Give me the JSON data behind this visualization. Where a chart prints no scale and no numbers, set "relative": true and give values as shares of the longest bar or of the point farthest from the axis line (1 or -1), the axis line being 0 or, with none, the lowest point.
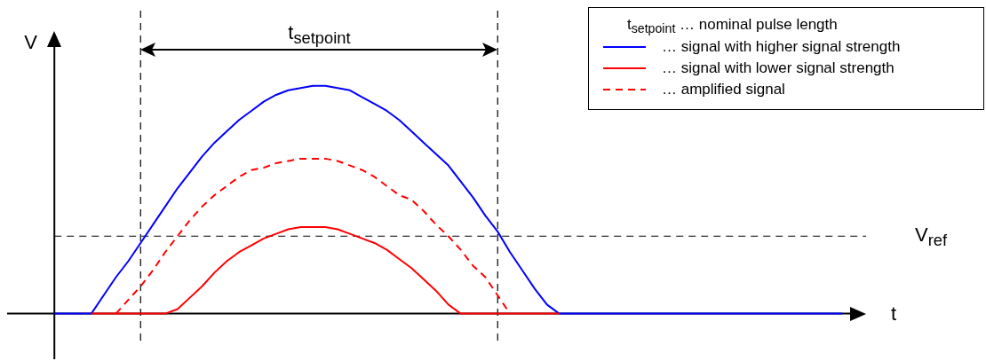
{
  "chart_data": {
    "type": "line",
    "relative": true,
    "xlabel": "t",
    "ylabel": "V",
    "legend": "top right",
    "marker": "none",
    "annotations": [
      "t$_{setpoint}$",
      "t$_{setpoint}$ … nominal pulse length"
    ],
    "categories": [
      null,
      null,
      null,
      null,
      null,
      null,
      null,
      null,
      null,
      null,
      null,
      null,
      null,
      null,
      null,
      null,
      null,
      null,
      null,
      null,
      null,
      null,
      null,
      null,
      null,
      null,
      null,
      null,
      null,
      null,
      null,
      null,
      null,
      null,
      null,
      null,
      null,
      null,
      null,
      null,
      null,
      null,
      null,
      null,
      null,
      null,
      null,
      null,
      null,
      null,
      null,
      null,
      null,
      null,
      null,
      null,
      null,
      null,
      null,
      null,
      null,
      null,
      null,
      null,
      null
    ],
    "series": [
      {
        "name": "… signal with higher signal strength",
        "color": "#0000ff",
        "line_style": "solid",
        "values": [
          0,
          0,
          0,
          0,
          0.08,
          0.16,
          0.23,
          0.31,
          0.39,
          0.47,
          0.55,
          0.62,
          0.69,
          0.75,
          0.8,
          0.85,
          0.89,
          0.93,
          0.96,
          0.98,
          0.99,
          1,
          1,
          0.99,
          0.98,
          0.95,
          0.92,
          0.89,
          0.85,
          0.8,
          0.75,
          0.7,
          0.65,
          0.58,
          0.51,
          0.43,
          0.36,
          0.27,
          0.19,
          0.11,
          0.04,
          0,
          0,
          0,
          0,
          0,
          0,
          0,
          0,
          0,
          0,
          0,
          0,
          0,
          0,
          0,
          0,
          0,
          0,
          0,
          0,
          0,
          0,
          0,
          0
        ]
      },
      {
        "name": "… signal with lower signal strength",
        "color": "#ff0000",
        "line_style": "solid",
        "values": [
          null,
          null,
          null,
          0,
          0,
          0,
          0,
          0,
          0,
          0,
          0.02,
          0.07,
          0.12,
          0.18,
          0.23,
          0.27,
          0.3,
          0.33,
          0.35,
          0.37,
          0.38,
          0.38,
          0.38,
          0.37,
          0.35,
          0.33,
          0.31,
          0.28,
          0.24,
          0.2,
          0.15,
          0.1,
          0.04,
          0,
          0,
          0,
          0,
          0,
          0,
          0,
          0,
          0,
          null,
          null,
          null,
          null,
          null,
          null,
          null,
          null,
          null,
          null,
          null,
          null,
          null,
          null,
          null,
          null,
          null,
          null,
          null,
          null,
          null,
          null,
          null
        ]
      },
      {
        "name": "… amplified signal",
        "color": "#ff0000",
        "line_style": "dashed",
        "values": [
          null,
          null,
          null,
          null,
          null,
          0,
          0.06,
          0.12,
          0.19,
          0.27,
          0.34,
          0.41,
          0.47,
          0.52,
          0.56,
          0.6,
          0.63,
          0.64,
          0.66,
          0.67,
          0.68,
          0.68,
          0.68,
          0.67,
          0.65,
          0.63,
          0.6,
          0.56,
          0.52,
          0.5,
          0.45,
          0.39,
          0.34,
          0.28,
          0.21,
          0.16,
          0.08,
          0,
          null,
          null,
          null,
          null,
          null,
          null,
          null,
          null,
          null,
          null,
          null,
          null,
          null,
          null,
          null,
          null,
          null,
          null,
          null,
          null,
          null,
          null,
          null,
          null,
          null,
          null,
          null
        ]
      }
    ],
    "ref_lines": [
      {
        "axis": "y",
        "value": 0.34,
        "label": "V$_{ref}$",
        "color": "#000000",
        "line_style": "dashed"
      }
    ]
  }
}
